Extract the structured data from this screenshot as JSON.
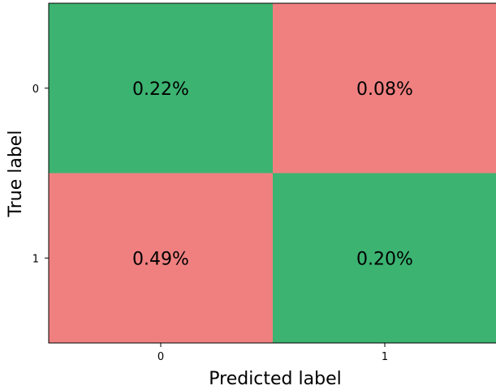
{
  "chart_data": {
    "type": "heatmap",
    "title": "",
    "xlabel": "Predicted label",
    "ylabel": "True label",
    "x_categories": [
      "0",
      "1"
    ],
    "y_categories": [
      "0",
      "1"
    ],
    "values": [
      [
        0.22,
        0.08
      ],
      [
        0.49,
        0.2
      ]
    ],
    "cell_labels": [
      [
        "0.22%",
        "0.08%"
      ],
      [
        "0.49%",
        "0.20%"
      ]
    ],
    "cell_status": [
      [
        "correct",
        "incorrect"
      ],
      [
        "incorrect",
        "correct"
      ]
    ],
    "colors": {
      "correct": "#3cb371",
      "incorrect": "#f08080"
    },
    "grid": false,
    "legend": "none"
  }
}
